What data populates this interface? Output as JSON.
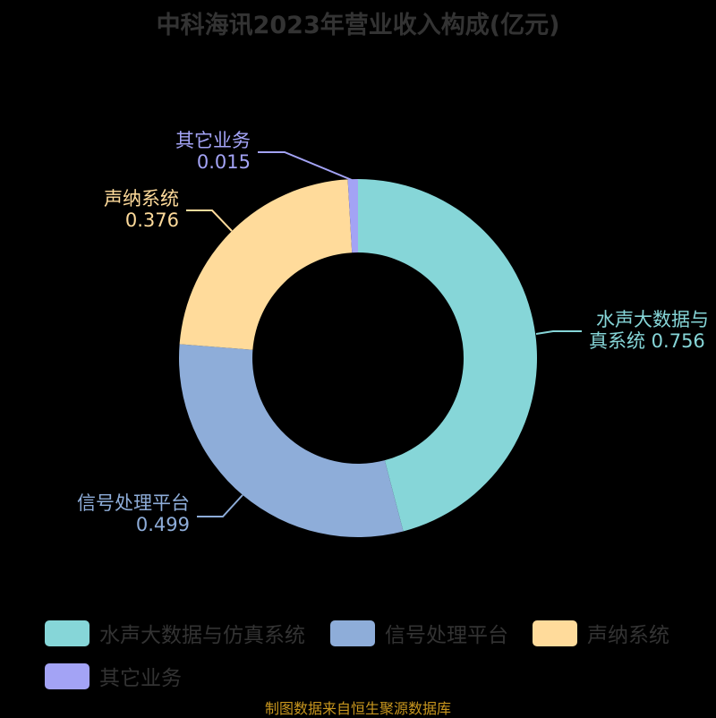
{
  "title": "中科海讯2023年营业收入构成(亿元)",
  "footer": "制图数据来自恒生聚源数据库",
  "colors": {
    "background": "#000000",
    "title": "#333333",
    "legend_text": "#333333",
    "footer": "#c8961e"
  },
  "labels": [
    {
      "line1": "水声大数据与",
      "line2": "真系统 0.756",
      "color": "#86d6d8"
    },
    {
      "line1": "信号处理平台",
      "line2": "0.499",
      "color": "#8eadd9"
    },
    {
      "line1": "声纳系统",
      "line2": "0.376",
      "color": "#ffdb9b"
    },
    {
      "line1": "其它业务",
      "line2": "0.015",
      "color": "#a3a3f5"
    }
  ],
  "legend": [
    {
      "label": "水声大数据与仿真系统",
      "color": "#86d6d8"
    },
    {
      "label": "信号处理平台",
      "color": "#8eadd9"
    },
    {
      "label": "声纳系统",
      "color": "#ffdb9b"
    },
    {
      "label": "其它业务",
      "color": "#a3a3f5"
    }
  ],
  "chart_data": {
    "type": "pie",
    "subtype": "donut",
    "title": "中科海讯2023年营业收入构成(亿元)",
    "categories": [
      "水声大数据与仿真系统",
      "信号处理平台",
      "声纳系统",
      "其它业务"
    ],
    "values": [
      0.756,
      0.499,
      0.376,
      0.015
    ],
    "unit": "亿元",
    "colors": [
      "#86d6d8",
      "#8eadd9",
      "#ffdb9b",
      "#a3a3f5"
    ],
    "legend_position": "bottom",
    "start_angle": "top, clockwise",
    "source_note": "制图数据来自恒生聚源数据库"
  }
}
